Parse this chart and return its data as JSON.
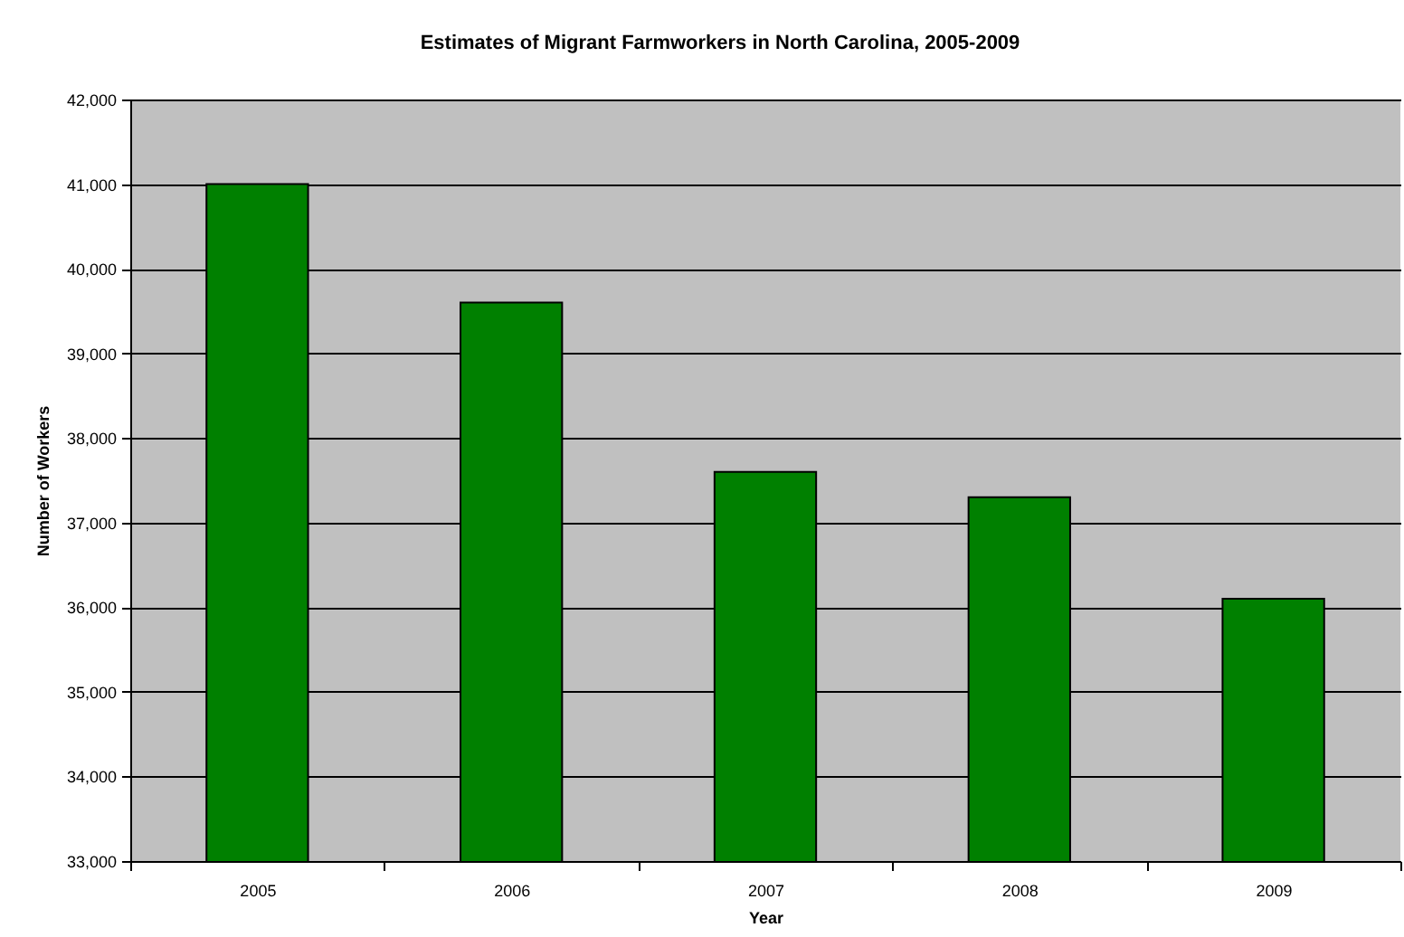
{
  "chart_data": {
    "type": "bar",
    "title": "Estimates of Migrant Farmworkers in North Carolina, 2005-2009",
    "xlabel": "Year",
    "ylabel": "Number of Workers",
    "categories": [
      "2005",
      "2006",
      "2007",
      "2008",
      "2009"
    ],
    "values": [
      41000,
      39600,
      37600,
      37300,
      36100
    ],
    "color": "#008000",
    "ylim": [
      33000,
      42000
    ],
    "yticks": [
      {
        "value": 33000,
        "label": "33,000"
      },
      {
        "value": 34000,
        "label": "34,000"
      },
      {
        "value": 35000,
        "label": "35,000"
      },
      {
        "value": 36000,
        "label": "36,000"
      },
      {
        "value": 37000,
        "label": "37,000"
      },
      {
        "value": 38000,
        "label": "38,000"
      },
      {
        "value": 39000,
        "label": "39,000"
      },
      {
        "value": 40000,
        "label": "40,000"
      },
      {
        "value": 41000,
        "label": "41,000"
      },
      {
        "value": 42000,
        "label": "42,000"
      }
    ],
    "grid": "y"
  }
}
